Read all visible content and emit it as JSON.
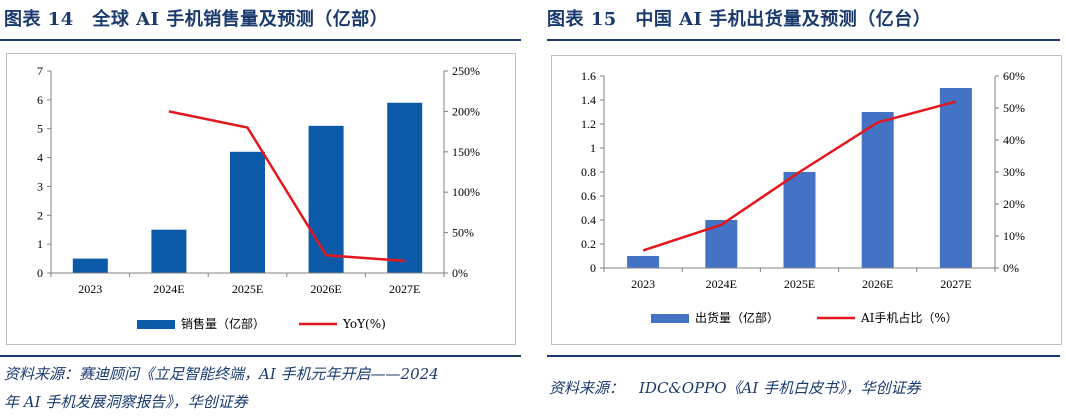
{
  "left": {
    "title": "图表 14　全球 AI 手机销售量及预测（亿部）",
    "source_line1": "资料来源：赛迪顾问《立足智能终端，AI 手机元年开启——2024",
    "source_line2": "年 AI 手机发展洞察报告》，华创证券"
  },
  "right": {
    "title": "图表 15　中国 AI 手机出货量及预测（亿台）",
    "source": "资料来源：　IDC&OPPO《AI 手机白皮书》，华创证券"
  },
  "chart_data": [
    {
      "type": "bar",
      "categories": [
        "2023",
        "2024E",
        "2025E",
        "2026E",
        "2027E"
      ],
      "series": [
        {
          "name": "销售量（亿部）",
          "kind": "bar",
          "axis": "left",
          "color": "#0b5aa8",
          "values": [
            0.5,
            1.5,
            4.2,
            5.1,
            5.9
          ]
        },
        {
          "name": "YoY(%)",
          "kind": "line",
          "axis": "right",
          "color": "#e3171d",
          "values": [
            null,
            200,
            180,
            22,
            15
          ]
        }
      ],
      "y_left": {
        "min": 0,
        "max": 7,
        "ticks": [
          "0",
          "1",
          "2",
          "3",
          "4",
          "5",
          "6",
          "7"
        ]
      },
      "y_right": {
        "min": 0,
        "max": 250,
        "ticks": [
          "0%",
          "50%",
          "100%",
          "150%",
          "200%",
          "250%"
        ]
      },
      "grid": false,
      "legend": "bottom"
    },
    {
      "type": "bar",
      "categories": [
        "2023",
        "2024E",
        "2025E",
        "2026E",
        "2027E"
      ],
      "series": [
        {
          "name": "出货量（亿部）",
          "kind": "bar",
          "axis": "left",
          "color": "#4472c4",
          "values": [
            0.1,
            0.4,
            0.8,
            1.3,
            1.5
          ]
        },
        {
          "name": "AI手机占比（%）",
          "kind": "line",
          "axis": "right",
          "color": "#e3171d",
          "values": [
            5.5,
            13.5,
            30,
            45.5,
            52
          ]
        }
      ],
      "y_left": {
        "min": 0,
        "max": 1.6,
        "ticks": [
          "0",
          "0.2",
          "0.4",
          "0.6",
          "0.8",
          "1",
          "1.2",
          "1.4",
          "1.6"
        ]
      },
      "y_right": {
        "min": 0,
        "max": 60,
        "ticks": [
          "0%",
          "10%",
          "20%",
          "30%",
          "40%",
          "50%",
          "60%"
        ]
      },
      "grid": false,
      "legend": "bottom"
    }
  ]
}
